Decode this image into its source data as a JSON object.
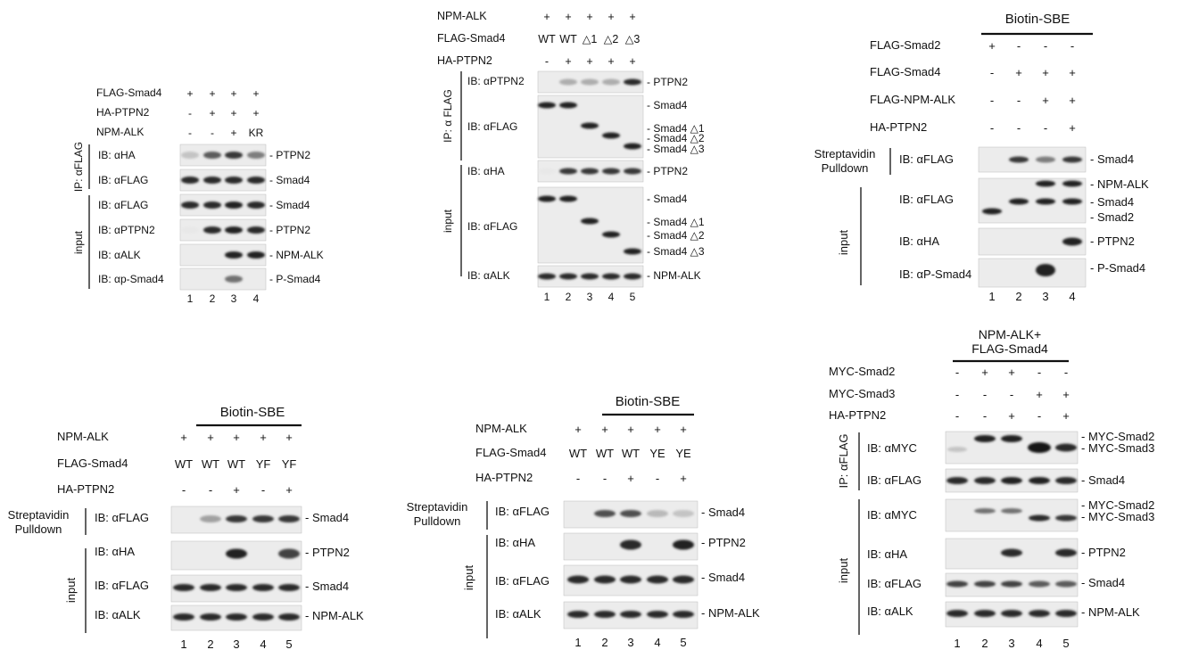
{
  "figure": {
    "panel_a": {
      "conditions": [
        {
          "label": "FLAG-Smad4",
          "marks": [
            "+",
            "+",
            "+",
            "+"
          ]
        },
        {
          "label": "HA-PTPN2",
          "marks": [
            "-",
            "+",
            "+",
            "+"
          ]
        },
        {
          "label": "NPM-ALK",
          "marks": [
            "-",
            "-",
            "+",
            "KR"
          ]
        }
      ],
      "groups": [
        {
          "label": "IP: αFLAG"
        },
        {
          "label": "input"
        }
      ],
      "rows": [
        {
          "ib": "IB: αHA",
          "band": "PTPN2",
          "intensity": [
            0.25,
            0.7,
            0.85,
            0.55
          ]
        },
        {
          "ib": "IB: αFLAG",
          "band": "Smad4",
          "intensity": [
            0.9,
            0.9,
            0.9,
            0.9
          ]
        },
        {
          "ib": "IB: αFLAG",
          "band": "Smad4",
          "intensity": [
            0.9,
            0.9,
            0.95,
            0.9
          ]
        },
        {
          "ib": "IB: αPTPN2",
          "band": "PTPN2",
          "intensity": [
            0.1,
            0.9,
            0.95,
            0.9
          ]
        },
        {
          "ib": "IB: αALK",
          "band": "NPM-ALK",
          "intensity": [
            0,
            0,
            0.95,
            0.95
          ]
        },
        {
          "ib": "IB: αp-Smad4",
          "band": "P-Smad4",
          "intensity": [
            0,
            0,
            0.6,
            0
          ]
        }
      ],
      "lanes": [
        "1",
        "2",
        "3",
        "4"
      ]
    },
    "panel_b": {
      "conditions": [
        {
          "label": "NPM-ALK",
          "marks": [
            "+",
            "+",
            "+",
            "+",
            "+"
          ]
        },
        {
          "label": "FLAG-Smad4",
          "marks": [
            "WT",
            "WT",
            "△1",
            "△2",
            "△3"
          ]
        },
        {
          "label": "HA-PTPN2",
          "marks": [
            "-",
            "+",
            "+",
            "+",
            "+"
          ]
        }
      ],
      "groups": [
        {
          "label": "IP: α FLAG"
        },
        {
          "label": "input"
        }
      ],
      "rows": [
        {
          "ib": "IB: αPTPN2",
          "bands": [
            "PTPN2"
          ]
        },
        {
          "ib": "IB: αFLAG",
          "bands": [
            "Smad4",
            "Smad4 △1",
            "Smad4 △2",
            "Smad4 △3"
          ]
        },
        {
          "ib": "IB: αHA",
          "bands": [
            "PTPN2"
          ]
        },
        {
          "ib": "IB: αFLAG",
          "bands": [
            "Smad4",
            "Smad4 △1",
            "Smad4 △2",
            "Smad4 △3"
          ]
        },
        {
          "ib": "IB: αALK",
          "bands": [
            "NPM-ALK"
          ]
        }
      ],
      "lanes": [
        "1",
        "2",
        "3",
        "4",
        "5"
      ]
    },
    "panel_c": {
      "header": "Biotin-SBE",
      "conditions": [
        {
          "label": "FLAG-Smad2",
          "marks": [
            "+",
            "-",
            "-",
            "-"
          ]
        },
        {
          "label": "FLAG-Smad4",
          "marks": [
            "-",
            "+",
            "+",
            "+"
          ]
        },
        {
          "label": "FLAG-NPM-ALK",
          "marks": [
            "-",
            "-",
            "+",
            "+"
          ]
        },
        {
          "label": "HA-PTPN2",
          "marks": [
            "-",
            "-",
            "-",
            "+"
          ]
        }
      ],
      "groups": [
        {
          "label": "Streptavidin Pulldown"
        },
        {
          "label": "input"
        }
      ],
      "rows": [
        {
          "ib": "IB: αFLAG",
          "bands": [
            "Smad4"
          ]
        },
        {
          "ib": "IB: αFLAG",
          "bands": [
            "NPM-ALK",
            "Smad4",
            "Smad2"
          ]
        },
        {
          "ib": "IB: αHA",
          "bands": [
            "PTPN2"
          ]
        },
        {
          "ib": "IB: αP-Smad4",
          "bands": [
            "P-Smad4"
          ]
        }
      ],
      "lanes": [
        "1",
        "2",
        "3",
        "4"
      ]
    },
    "panel_d": {
      "header": "Biotin-SBE",
      "conditions": [
        {
          "label": "NPM-ALK",
          "marks": [
            "+",
            "+",
            "+",
            "+",
            "+"
          ]
        },
        {
          "label": "FLAG-Smad4",
          "marks": [
            "WT",
            "WT",
            "WT",
            "YF",
            "YF"
          ]
        },
        {
          "label": "HA-PTPN2",
          "marks": [
            "-",
            "-",
            "+",
            "-",
            "+"
          ]
        }
      ],
      "groups": [
        {
          "label": "Streptavidin Pulldown"
        },
        {
          "label": "input"
        }
      ],
      "rows": [
        {
          "ib": "IB: αFLAG",
          "band": "Smad4"
        },
        {
          "ib": "IB: αHA",
          "band": "PTPN2"
        },
        {
          "ib": "IB: αFLAG",
          "band": "Smad4"
        },
        {
          "ib": "IB: αALK",
          "band": "NPM-ALK"
        }
      ],
      "lanes": [
        "1",
        "2",
        "3",
        "4",
        "5"
      ]
    },
    "panel_e": {
      "header": "Biotin-SBE",
      "conditions": [
        {
          "label": "NPM-ALK",
          "marks": [
            "+",
            "+",
            "+",
            "+",
            "+"
          ]
        },
        {
          "label": "FLAG-Smad4",
          "marks": [
            "WT",
            "WT",
            "WT",
            "YE",
            "YE"
          ]
        },
        {
          "label": "HA-PTPN2",
          "marks": [
            "-",
            "-",
            "+",
            "-",
            "+"
          ]
        }
      ],
      "groups": [
        {
          "label": "Streptavidin Pulldown"
        },
        {
          "label": "input"
        }
      ],
      "rows": [
        {
          "ib": "IB: αFLAG",
          "band": "Smad4"
        },
        {
          "ib": "IB: αHA",
          "band": "PTPN2"
        },
        {
          "ib": "IB: αFLAG",
          "band": "Smad4"
        },
        {
          "ib": "IB: αALK",
          "band": "NPM-ALK"
        }
      ],
      "lanes": [
        "1",
        "2",
        "3",
        "4",
        "5"
      ]
    },
    "panel_f": {
      "header": "NPM-ALK+ FLAG-Smad4",
      "conditions": [
        {
          "label": "MYC-Smad2",
          "marks": [
            "-",
            "+",
            "+",
            "-",
            "-"
          ]
        },
        {
          "label": "MYC-Smad3",
          "marks": [
            "-",
            "-",
            "-",
            "+",
            "+"
          ]
        },
        {
          "label": "HA-PTPN2",
          "marks": [
            "-",
            "-",
            "+",
            "-",
            "+"
          ]
        }
      ],
      "groups": [
        {
          "label": "IP: αFLAG"
        },
        {
          "label": "input"
        }
      ],
      "rows": [
        {
          "ib": "IB: αMYC",
          "bands": [
            "MYC-Smad2",
            "MYC-Smad3"
          ]
        },
        {
          "ib": "IB: αFLAG",
          "bands": [
            "Smad4"
          ]
        },
        {
          "ib": "IB: αMYC",
          "bands": [
            "MYC-Smad2",
            "MYC-Smad3"
          ]
        },
        {
          "ib": "IB: αHA",
          "bands": [
            "PTPN2"
          ]
        },
        {
          "ib": "IB: αFLAG",
          "bands": [
            "Smad4"
          ]
        },
        {
          "ib": "IB: αALK",
          "bands": [
            "NPM-ALK"
          ]
        }
      ],
      "lanes": [
        "1",
        "2",
        "3",
        "4",
        "5"
      ]
    }
  }
}
